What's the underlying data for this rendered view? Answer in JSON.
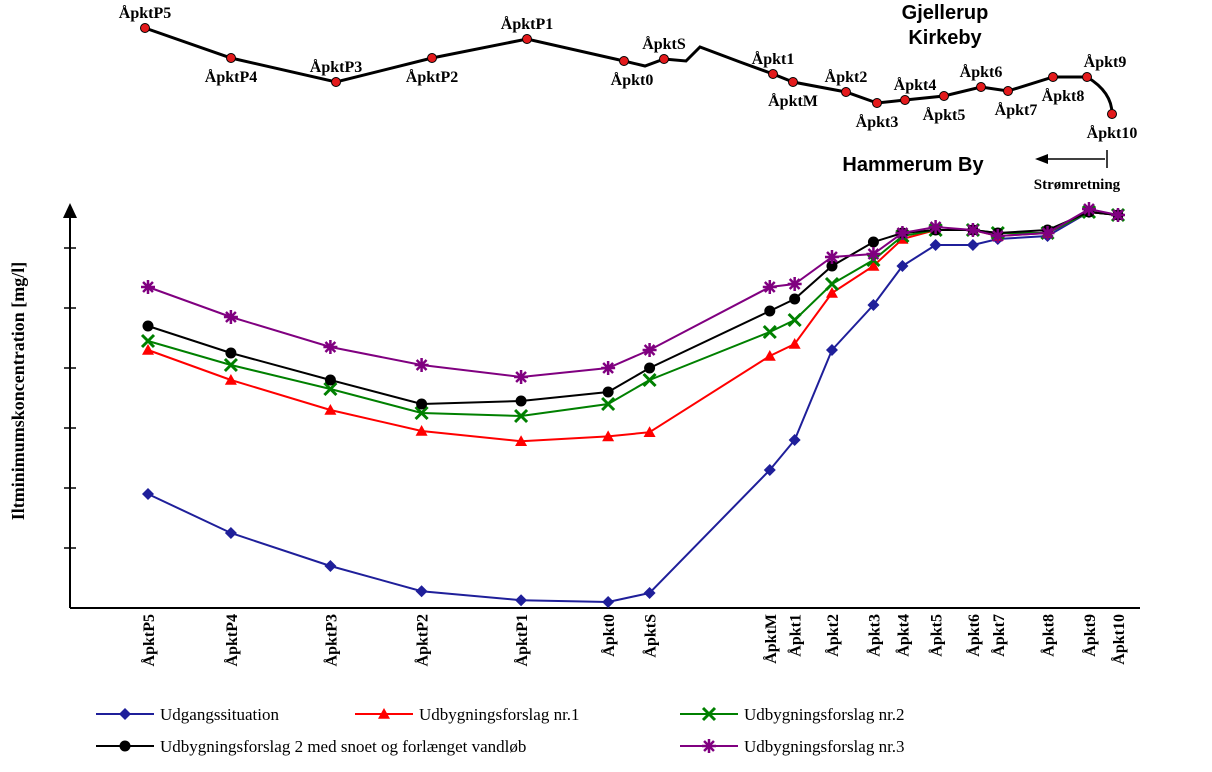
{
  "map": {
    "route_points": [
      {
        "label": "ÅpktP5",
        "on_map": true
      },
      {
        "label": "ÅpktP4",
        "on_map": true
      },
      {
        "label": "ÅpktP3",
        "on_map": true
      },
      {
        "label": "ÅpktP2",
        "on_map": true
      },
      {
        "label": "ÅpktP1",
        "on_map": true
      },
      {
        "label": "Åpkt0",
        "on_map": true
      },
      {
        "label": "ÅpktS",
        "on_map": true
      },
      {
        "label": "Åpkt1",
        "on_map": true
      },
      {
        "label": "ÅpktM",
        "on_map": true
      },
      {
        "label": "Åpkt2",
        "on_map": true
      },
      {
        "label": "Åpkt3",
        "on_map": true
      },
      {
        "label": "Åpkt4",
        "on_map": true
      },
      {
        "label": "Åpkt5",
        "on_map": true
      },
      {
        "label": "Åpkt6",
        "on_map": true
      },
      {
        "label": "Åpkt7",
        "on_map": true
      },
      {
        "label": "Åpkt8",
        "on_map": true
      },
      {
        "label": "Åpkt9",
        "on_map": true
      },
      {
        "label": "Åpkt10",
        "on_map": true
      }
    ],
    "town_upper": [
      "Gjellerup",
      "Kirkeby"
    ],
    "town_lower": "Hammerum By",
    "flow_direction_label": "Strømretning",
    "line_color": "#000000",
    "point_color": "#e31a1c"
  },
  "chart_data": {
    "type": "line",
    "ylabel": "Iltminimumskoncentration [mg/l]",
    "xlabel": "",
    "grid": false,
    "y_tick_labels_shown": false,
    "ylim": [
      0,
      6.6
    ],
    "categories": [
      "ÅpktP5",
      "ÅpktP4",
      "ÅpktP3",
      "ÅpktP2",
      "ÅpktP1",
      "Åpkt0",
      "ÅpktS",
      "ÅpktM",
      "Åpkt1",
      "Åpkt2",
      "Åpkt3",
      "Åpkt4",
      "Åpkt5",
      "Åpkt6",
      "Åpkt7",
      "Åpkt8",
      "Åpkt9",
      "Åpkt10"
    ],
    "x": [
      0,
      1.0,
      2.2,
      3.3,
      4.5,
      5.55,
      6.05,
      7.5,
      7.8,
      8.25,
      8.75,
      9.1,
      9.5,
      9.95,
      10.25,
      10.85,
      11.35,
      11.7
    ],
    "legend_position": "bottom",
    "series": [
      {
        "name": "Udgangssituation",
        "color": "#1f1f9a",
        "marker": "diamond",
        "values": [
          1.9,
          1.25,
          0.7,
          0.28,
          0.13,
          0.1,
          0.25,
          2.3,
          2.8,
          4.3,
          5.05,
          5.7,
          6.05,
          6.05,
          6.15,
          6.2,
          6.6,
          6.55
        ]
      },
      {
        "name": "Udbygningsforslag nr.1",
        "color": "#ff0000",
        "marker": "triangle",
        "values": [
          4.3,
          3.8,
          3.3,
          2.95,
          2.78,
          2.86,
          2.93,
          4.2,
          4.4,
          5.25,
          5.7,
          6.15,
          6.3,
          6.3,
          6.2,
          6.25,
          6.6,
          6.55
        ]
      },
      {
        "name": "Udbygningsforslag nr.2",
        "color": "#008000",
        "marker": "x",
        "values": [
          4.45,
          4.05,
          3.65,
          3.25,
          3.2,
          3.4,
          3.8,
          4.6,
          4.8,
          5.4,
          5.8,
          6.2,
          6.3,
          6.3,
          6.25,
          6.25,
          6.6,
          6.55
        ]
      },
      {
        "name": "Udbygningsforslag 2 med snoet og forlænget vandløb",
        "color": "#000000",
        "marker": "circle",
        "values": [
          4.7,
          4.25,
          3.8,
          3.4,
          3.45,
          3.6,
          4.0,
          4.95,
          5.15,
          5.7,
          6.1,
          6.25,
          6.3,
          6.3,
          6.25,
          6.3,
          6.6,
          6.55
        ]
      },
      {
        "name": "Udbygningsforslag nr.3",
        "color": "#800080",
        "marker": "star",
        "values": [
          5.35,
          4.85,
          4.35,
          4.05,
          3.85,
          4.0,
          4.3,
          5.35,
          5.4,
          5.85,
          5.9,
          6.25,
          6.35,
          6.3,
          6.2,
          6.25,
          6.65,
          6.55
        ]
      }
    ]
  }
}
